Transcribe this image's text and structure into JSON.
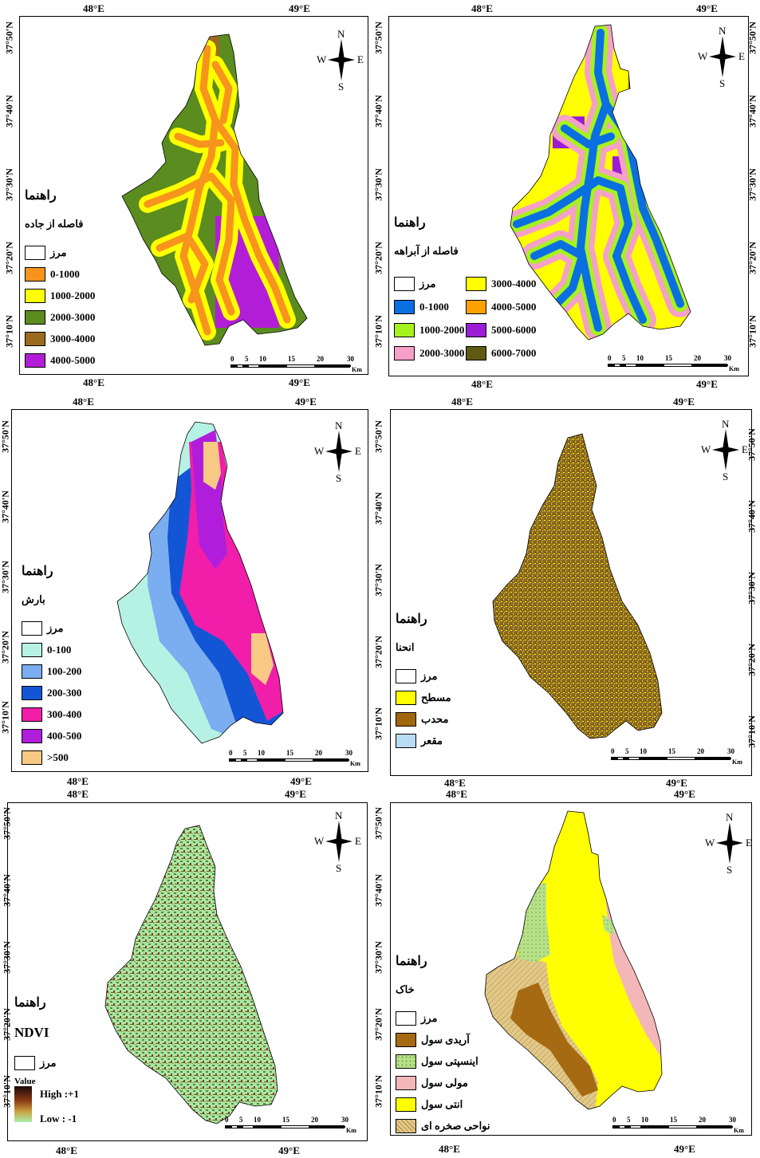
{
  "panels": [
    {
      "id": "road",
      "legend_title": "راهنما",
      "legend_subtitle": "فاصله از جاده",
      "items": [
        {
          "label": "مرز",
          "color": "#ffffff"
        },
        {
          "label": "0-1000",
          "color": "#f7941d"
        },
        {
          "label": "1000-2000",
          "color": "#ffff00"
        },
        {
          "label": "2000-3000",
          "color": "#5a8c1f"
        },
        {
          "label": "3000-4000",
          "color": "#9c6a1e"
        },
        {
          "label": "4000-5000",
          "color": "#b21ed8"
        }
      ],
      "x_ticks": [
        "48°E",
        "49°E"
      ],
      "y_ticks": [
        "37°50'N",
        "37°40'N",
        "37°30'N",
        "37°20'N",
        "37°10'N"
      ]
    },
    {
      "id": "drainage",
      "legend_title": "راهنما",
      "legend_subtitle": "فاصله از آبراهه",
      "items": [
        {
          "label": "مرز",
          "color": "#ffffff"
        },
        {
          "label": "0-1000",
          "color": "#0a6fe0"
        },
        {
          "label": "1000-2000",
          "color": "#a6f21e"
        },
        {
          "label": "2000-3000",
          "color": "#f5a0c8"
        },
        {
          "label": "3000-4000",
          "color": "#ffff00"
        },
        {
          "label": "4000-5000",
          "color": "#ffa200"
        },
        {
          "label": "5000-6000",
          "color": "#9b1ed6"
        },
        {
          "label": "6000-7000",
          "color": "#5e5a12"
        }
      ],
      "x_ticks": [
        "48°E",
        "49°E"
      ],
      "y_ticks": [
        "37°50'N",
        "37°40'N",
        "37°30'N",
        "37°20'N",
        "37°10'N"
      ]
    },
    {
      "id": "rainfall",
      "legend_title": "راهنما",
      "legend_subtitle": "بارش",
      "items": [
        {
          "label": "مرز",
          "color": "#ffffff"
        },
        {
          "label": "0-100",
          "color": "#b5f2e4"
        },
        {
          "label": "100-200",
          "color": "#7aaef0"
        },
        {
          "label": "200-300",
          "color": "#1256d6"
        },
        {
          "label": "300-400",
          "color": "#f01ea8"
        },
        {
          "label": "400-500",
          "color": "#b01edc"
        },
        {
          "label": ">500",
          "color": "#f8c985"
        }
      ],
      "x_ticks": [
        "48°E",
        "49°E"
      ],
      "y_ticks": [
        "37°50'N",
        "37°40'N",
        "37°30'N",
        "37°20'N",
        "37°10'N"
      ]
    },
    {
      "id": "curvature",
      "legend_title": "راهنما",
      "legend_subtitle": "انحنا",
      "items": [
        {
          "label": "مرز",
          "color": "#ffffff"
        },
        {
          "label": "مسطح",
          "color": "#ffff00"
        },
        {
          "label": "محدب",
          "color": "#a0660a"
        },
        {
          "label": "مقعر",
          "color": "#b9dcf5"
        }
      ],
      "x_ticks": [
        "48°E",
        "49°E"
      ],
      "y_ticks": [
        "37°50'N",
        "37°40'N",
        "37°30'N",
        "37°20'N",
        "37°10'N"
      ]
    },
    {
      "id": "ndvi",
      "legend_title": "راهنما",
      "legend_subtitle": "NDVI",
      "items": [
        {
          "label": "مرز",
          "color": "#ffffff"
        }
      ],
      "value_label": "Value",
      "high_label": "High :+1",
      "low_label": "Low : -1",
      "x_ticks": [
        "48°E",
        "49°E"
      ],
      "y_ticks": [
        "37°50'N",
        "37°40'N",
        "37°30'N",
        "37°20'N",
        "37°10'N"
      ]
    },
    {
      "id": "soil",
      "legend_title": "راهنما",
      "legend_subtitle": "خاک",
      "items": [
        {
          "label": "مرز",
          "color": "#ffffff"
        },
        {
          "label": "آریدی سول",
          "color": "#a56a12"
        },
        {
          "label": "اینسپتی سول",
          "color": "#b8e08a"
        },
        {
          "label": "مولی سول",
          "color": "#f4b7b7"
        },
        {
          "label": "انتی سول",
          "color": "#ffff00"
        },
        {
          "label": "نواحی صخره ای",
          "color": "#e2c98a"
        }
      ],
      "x_ticks": [
        "48°E",
        "49°E"
      ],
      "y_ticks": [
        "37°50'N",
        "37°40'N",
        "37°30'N",
        "37°20'N",
        "37°10'N"
      ]
    }
  ],
  "compass": {
    "n": "N",
    "s": "S",
    "e": "E",
    "w": "W"
  },
  "scale": {
    "labels": [
      "0",
      "5",
      "10",
      "15",
      "20",
      "30"
    ],
    "unit": "Km"
  }
}
